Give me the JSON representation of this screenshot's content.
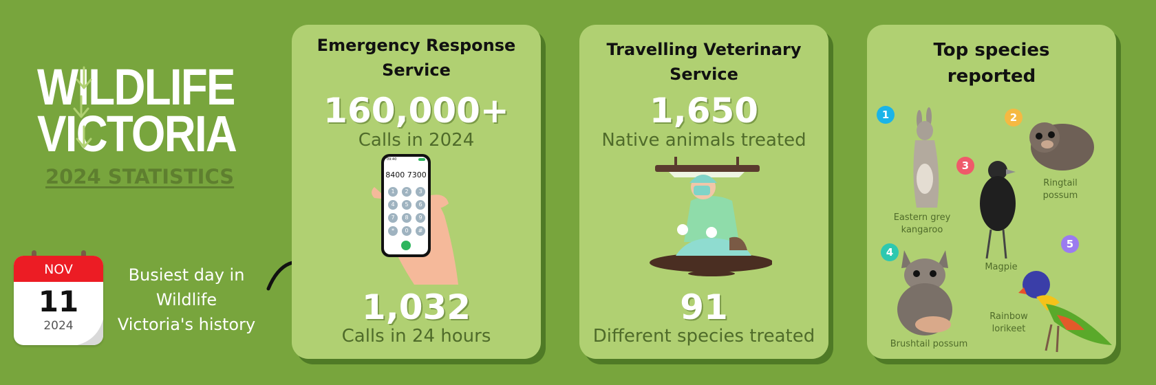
{
  "logo": {
    "line1": "WILDLIFE",
    "line2": "VICTORIA"
  },
  "stats_title": "2024 STATISTICS",
  "calendar": {
    "month": "NOV",
    "day": "11",
    "year": "2024"
  },
  "busiest_day": {
    "lines": [
      "Busiest day in",
      "Wildlife",
      "Victoria's history"
    ]
  },
  "emergency": {
    "title_lines": [
      "Emergency Response",
      "Service"
    ],
    "stat1_value": "160,000+",
    "stat1_label": "Calls in 2024",
    "phone_number": "8400 7300",
    "phone_time": "09:40",
    "phone_keys": [
      "1",
      "2",
      "3",
      "4",
      "5",
      "6",
      "7",
      "8",
      "9",
      "*",
      "0",
      "#"
    ],
    "stat2_value": "1,032",
    "stat2_label": "Calls in 24 hours"
  },
  "vet": {
    "title_lines": [
      "Travelling Veterinary",
      "Service"
    ],
    "stat1_value": "1,650",
    "stat1_label": "Native animals treated",
    "stat2_value": "91",
    "stat2_label": "Different species treated"
  },
  "species": {
    "title_lines": [
      "Top species",
      "reported"
    ],
    "items": [
      {
        "rank": "1",
        "name_lines": [
          "Eastern grey",
          "kangaroo"
        ],
        "color": "#1ab4e8"
      },
      {
        "rank": "2",
        "name_lines": [
          "Ringtail",
          "possum"
        ],
        "color": "#f5b942"
      },
      {
        "rank": "3",
        "name_lines": [
          "Magpie"
        ],
        "color": "#ef5a6a"
      },
      {
        "rank": "4",
        "name_lines": [
          "Brushtail possum"
        ],
        "color": "#2ec8b0"
      },
      {
        "rank": "5",
        "name_lines": [
          "Rainbow",
          "lorikeet"
        ],
        "color": "#9b7bf0"
      }
    ]
  },
  "colors": {
    "background": "#78a53d",
    "card": "#b0d072",
    "card_shadow": "#4f7a26",
    "calendar_red": "#ec1c24"
  }
}
